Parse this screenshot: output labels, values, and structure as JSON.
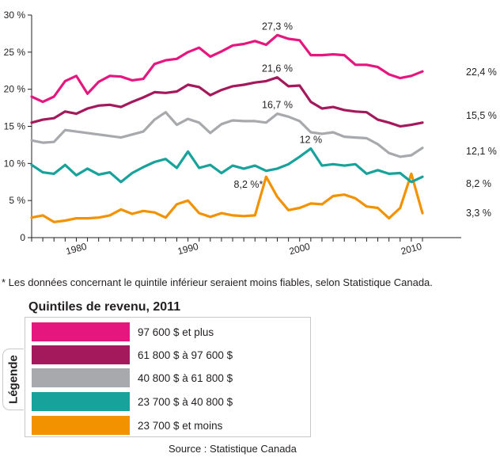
{
  "chart_data": {
    "type": "line",
    "x": [
      1976,
      1977,
      1978,
      1979,
      1980,
      1981,
      1982,
      1983,
      1984,
      1985,
      1986,
      1987,
      1988,
      1989,
      1990,
      1991,
      1992,
      1993,
      1994,
      1995,
      1996,
      1997,
      1998,
      1999,
      2000,
      2001,
      2002,
      2003,
      2004,
      2005,
      2006,
      2007,
      2008,
      2009,
      2010,
      2011
    ],
    "ylim": [
      0,
      30
    ],
    "yticks": [
      0,
      5,
      10,
      15,
      20,
      25,
      30
    ],
    "yticklabels": [
      "0",
      "5 %",
      "10 %",
      "15 %",
      "20 %",
      "25 %",
      "30 %"
    ],
    "xticks": [
      1980,
      1990,
      2000,
      2010
    ],
    "xticklabels": [
      "1980",
      "1990",
      "2000",
      "2010"
    ],
    "series": [
      {
        "name": "97 600 $ et plus",
        "color": "#e5177f",
        "values": [
          19.0,
          18.3,
          19.0,
          21.1,
          21.8,
          19.4,
          21.0,
          21.8,
          21.7,
          21.2,
          21.4,
          23.4,
          23.9,
          24.1,
          25.0,
          25.6,
          24.4,
          25.1,
          25.9,
          26.1,
          26.5,
          26.0,
          27.3,
          26.8,
          26.6,
          24.6,
          24.6,
          24.7,
          24.6,
          23.3,
          23.3,
          23.0,
          22.0,
          21.5,
          21.8,
          22.4
        ]
      },
      {
        "name": "61 800 $ à 97 600 $",
        "color": "#a3195b",
        "values": [
          15.5,
          15.9,
          16.1,
          17.0,
          16.7,
          17.4,
          17.8,
          17.9,
          17.6,
          18.3,
          18.9,
          19.6,
          19.5,
          19.7,
          20.6,
          20.3,
          19.2,
          19.9,
          20.4,
          20.6,
          20.9,
          21.1,
          21.6,
          20.4,
          20.5,
          18.3,
          17.4,
          17.6,
          17.2,
          17.0,
          16.9,
          15.9,
          15.5,
          15.0,
          15.2,
          15.5
        ]
      },
      {
        "name": "40 800 $ à 61 800 $",
        "color": "#a7a9ac",
        "values": [
          13.1,
          12.8,
          12.9,
          14.5,
          14.3,
          14.1,
          13.9,
          13.7,
          13.5,
          13.9,
          14.3,
          15.9,
          16.9,
          15.2,
          16.0,
          15.5,
          14.1,
          15.3,
          15.8,
          15.7,
          15.7,
          15.5,
          16.7,
          16.3,
          15.7,
          14.2,
          14.0,
          14.2,
          13.6,
          13.5,
          13.4,
          12.6,
          11.4,
          10.9,
          11.1,
          12.1
        ]
      },
      {
        "name": "23 700 $ à 40 800 $",
        "color": "#17a29b",
        "values": [
          9.8,
          8.8,
          8.6,
          9.8,
          8.4,
          9.3,
          8.5,
          8.8,
          7.5,
          8.7,
          9.5,
          10.2,
          10.6,
          9.4,
          11.6,
          9.4,
          9.8,
          8.7,
          9.7,
          9.3,
          9.7,
          9.0,
          9.3,
          9.9,
          10.9,
          12.0,
          9.7,
          9.9,
          9.7,
          9.9,
          8.6,
          9.1,
          8.6,
          8.7,
          7.5,
          8.2
        ]
      },
      {
        "name": "23 700 $ et moins",
        "color": "#f39200",
        "values": [
          2.7,
          3.0,
          2.1,
          2.3,
          2.6,
          2.6,
          2.7,
          3.0,
          3.8,
          3.2,
          3.6,
          3.4,
          2.7,
          4.5,
          5.0,
          3.3,
          2.8,
          3.3,
          3.0,
          2.9,
          3.0,
          8.2,
          5.5,
          3.7,
          4.0,
          4.6,
          4.5,
          5.6,
          5.8,
          5.3,
          4.2,
          4.0,
          2.6,
          4.0,
          8.6,
          3.3
        ]
      }
    ],
    "annotations": [
      {
        "text": "27,3 %",
        "series": 0,
        "x": 1998
      },
      {
        "text": "21,6 %",
        "series": 1,
        "x": 1998
      },
      {
        "text": "16,7 %",
        "series": 2,
        "x": 1998
      },
      {
        "text": "12 %",
        "series": 3,
        "x": 2001
      },
      {
        "text": "8,2 %*",
        "series": 4,
        "x": 1997
      }
    ],
    "end_labels": [
      "22,4 %",
      "15,5 %",
      "12,1 %",
      "8,2 %",
      "3,3 %"
    ]
  },
  "footnote": "* Les données concernant le quintile inférieur seraient moins fiables, selon Statistique Canada.",
  "legend": {
    "title": "Quintiles de revenu, 2011",
    "tab": "Légende",
    "items": [
      {
        "label": "97 600 $ et plus",
        "color": "#e5177f"
      },
      {
        "label": "61 800 $ à 97 600 $",
        "color": "#a3195b"
      },
      {
        "label": "40 800 $ à 61 800 $",
        "color": "#a7a9ac"
      },
      {
        "label": "23 700 $ à 40 800 $",
        "color": "#17a29b"
      },
      {
        "label": "23 700 $ et moins",
        "color": "#f39200"
      }
    ]
  },
  "source": "Source : Statistique Canada"
}
